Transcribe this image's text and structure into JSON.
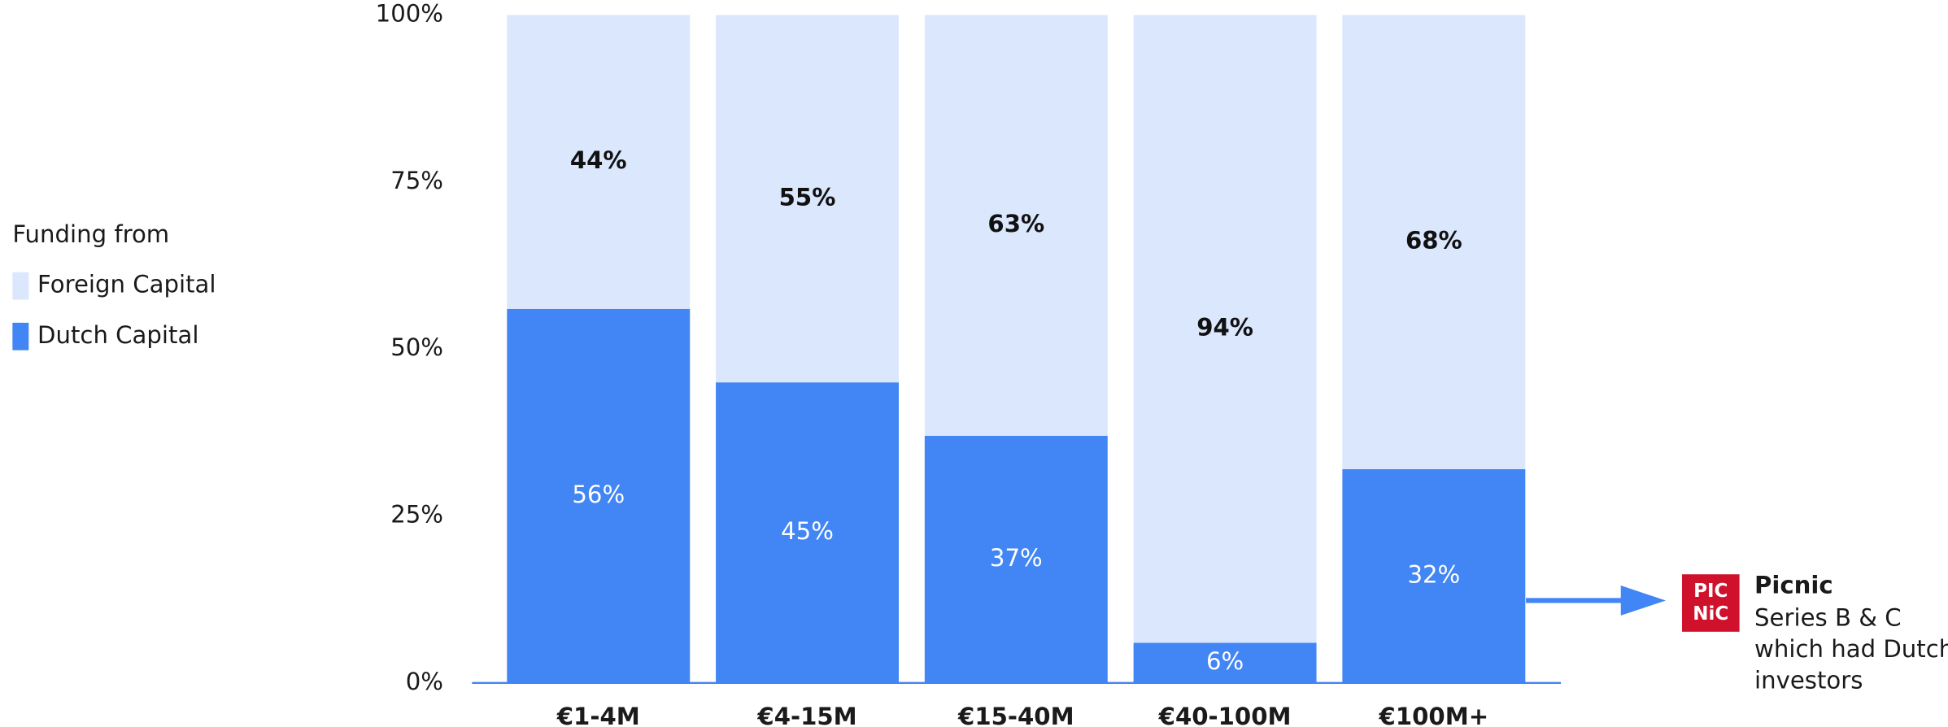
{
  "chart_data": {
    "type": "stacked_bar",
    "categories": [
      "€1-4M",
      "€4-15M",
      "€15-40M",
      "€40-100M",
      "€100M+"
    ],
    "series": [
      {
        "name": "Dutch Capital",
        "color": "#4285f4",
        "label_color": "#ffffff",
        "values": [
          56,
          45,
          37,
          6,
          32
        ],
        "value_labels": [
          "56%",
          "45%",
          "37%",
          "6%",
          "32%"
        ]
      },
      {
        "name": "Foreign Capital",
        "color": "#dbe7fd",
        "label_color": "#111111",
        "values": [
          44,
          55,
          63,
          94,
          68
        ],
        "value_labels": [
          "44%",
          "55%",
          "63%",
          "94%",
          "68%"
        ]
      }
    ],
    "ylim": [
      0,
      100
    ],
    "yticks": [
      {
        "value": 0,
        "label": "0%"
      },
      {
        "value": 25,
        "label": "25%"
      },
      {
        "value": 50,
        "label": "50%"
      },
      {
        "value": 75,
        "label": "75%"
      },
      {
        "value": 100,
        "label": "100%"
      }
    ],
    "legend_title": "Funding from",
    "legend_position": "left",
    "annotation": {
      "logo": [
        "PIC",
        "NiC"
      ],
      "title": "Picnic",
      "lines": [
        "Series B & C",
        "which had Dutch",
        "investors"
      ]
    }
  }
}
